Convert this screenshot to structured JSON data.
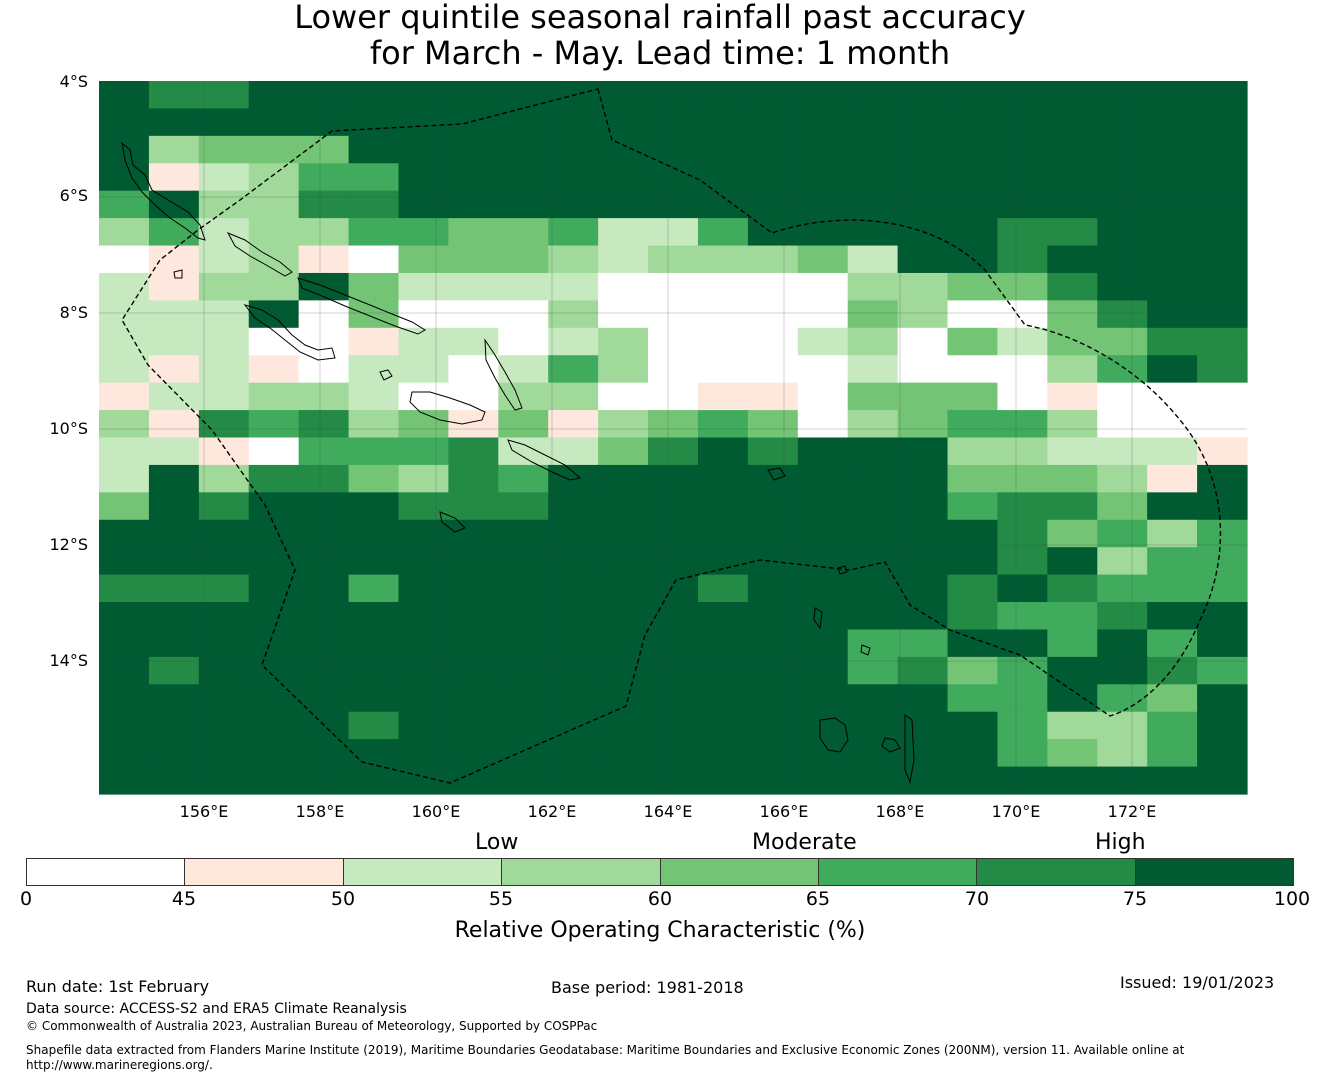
{
  "title": {
    "line1": "Lower quintile seasonal rainfall past accuracy",
    "line2": "for March - May. Lead time: 1 month"
  },
  "map": {
    "lat_labels": [
      "4°S",
      "6°S",
      "8°S",
      "10°S",
      "12°S",
      "14°S"
    ],
    "lon_labels": [
      "156°E",
      "158°E",
      "160°E",
      "162°E",
      "164°E",
      "166°E",
      "168°E",
      "170°E",
      "172°E"
    ],
    "grid_levels": [
      "76677777777777777777777",
      "77777777777777777777777",
      "73444777777777777777777",
      "71235577777777777777777",
      "57336677777777777777777",
      "35233554452257777766777",
      "01231044432333427767777",
      "21337422220000033446777",
      "22270400030000043004677",
      "22200122023000230424466",
      "21210220253000020003576",
      "12233200330011044401000",
      "31656341413454034553000",
      "22105556224676777332221",
      "27366436577777777444317",
      "47677766677777777566477",
      "77777777777777777764535",
      "77777777777777777767355",
      "66677577777767777676555",
      "77777777777777777655677",
      "77777777777777755775757",
      "76777777777777756457765",
      "77777777777777777557547",
      "77777677777777777753357",
      "77777777777777777754357",
      "77777777777777777777777"
    ]
  },
  "legend": {
    "categories": [
      "Low",
      "Moderate",
      "High"
    ],
    "colors": [
      "#ffffff",
      "#fee8de",
      "#c7e9c0",
      "#a1d99b",
      "#74c476",
      "#41ab5d",
      "#238b45",
      "#005a32"
    ],
    "ticks": [
      "0",
      "45",
      "50",
      "55",
      "60",
      "65",
      "70",
      "75",
      "100"
    ],
    "label": "Relative Operating Characteristic (%)"
  },
  "footer": {
    "run_date": "Run date: 1st February",
    "base_period": "Base period: 1981-2018",
    "issued": "Issued: 19/01/2023",
    "data_source": "Data source: ACCESS-S2 and ERA5 Climate Reanalysis",
    "copyright": "© Commonwealth of Australia 2023, Australian Bureau of Meteorology, Supported by COSPPac",
    "shapefile_line1": "Shapefile data extracted from Flanders Marine Institute (2019), Maritime Boundaries Geodatabase: Maritime Boundaries and Exclusive Economic Zones (200NM), version 11. Available online at",
    "shapefile_line2": "http://www.marineregions.org/."
  }
}
